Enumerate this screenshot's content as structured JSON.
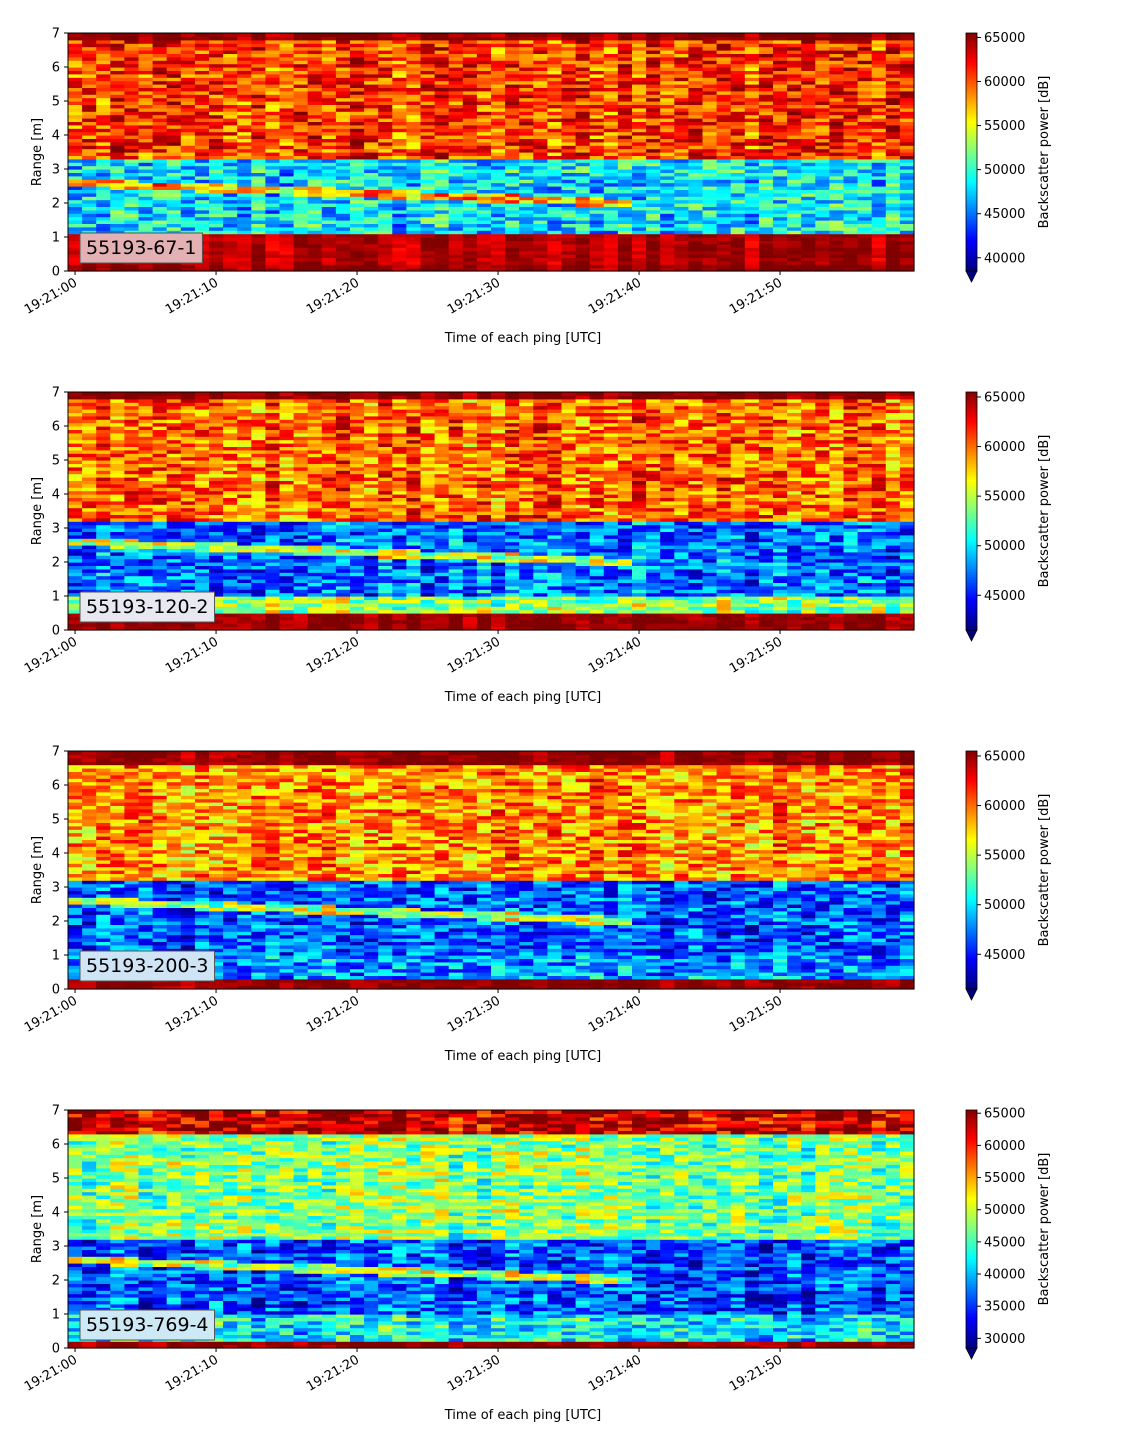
{
  "chart_data": [
    {
      "type": "heatmap",
      "label": "55193-67-1",
      "label_box_color": "#e3b1b3",
      "xlabel": "Time of each ping [UTC]",
      "ylabel": "Range [m]",
      "x_ticks": [
        "19:21:00",
        "19:21:10",
        "19:21:20",
        "19:21:30",
        "19:21:40",
        "19:21:50"
      ],
      "x_range": [
        "19:20:59.5",
        "19:21:59.5"
      ],
      "y_ticks": [
        0,
        1,
        2,
        3,
        4,
        5,
        6,
        7
      ],
      "ylim": [
        0,
        7
      ],
      "colorbar": {
        "label": "Backscatter power [dB]",
        "ticks": [
          40000,
          45000,
          50000,
          55000,
          60000,
          65000
        ],
        "vmin": 38500,
        "vmax": 65500,
        "colormap": "jet",
        "extend": "min"
      },
      "regions": [
        {
          "range": [
            0.0,
            0.25
          ],
          "level": 65000,
          "note": "strong near-field band"
        },
        {
          "range": [
            0.25,
            1.1
          ],
          "level": 64000
        },
        {
          "range": [
            1.1,
            3.3
          ],
          "level": 48000,
          "note": "low-backscatter layer with sloping echo line"
        },
        {
          "range": [
            3.3,
            6.8
          ],
          "level": 60500
        },
        {
          "range": [
            6.8,
            7.0
          ],
          "level": 65000,
          "note": "strong far-field band"
        }
      ]
    },
    {
      "type": "heatmap",
      "label": "55193-120-2",
      "label_box_color": "#e8e8f0",
      "xlabel": "Time of each ping [UTC]",
      "ylabel": "Range [m]",
      "x_ticks": [
        "19:21:00",
        "19:21:10",
        "19:21:20",
        "19:21:30",
        "19:21:40",
        "19:21:50"
      ],
      "x_range": [
        "19:20:59.5",
        "19:21:59.5"
      ],
      "y_ticks": [
        0,
        1,
        2,
        3,
        4,
        5,
        6,
        7
      ],
      "ylim": [
        0,
        7
      ],
      "colorbar": {
        "label": "Backscatter power [dB]",
        "ticks": [
          45000,
          50000,
          55000,
          60000,
          65000
        ],
        "vmin": 41500,
        "vmax": 65500,
        "colormap": "jet",
        "extend": "min"
      },
      "regions": [
        {
          "range": [
            0.0,
            0.5
          ],
          "level": 65000
        },
        {
          "range": [
            0.5,
            1.0
          ],
          "level": 54000
        },
        {
          "range": [
            1.0,
            3.2
          ],
          "level": 47000
        },
        {
          "range": [
            3.2,
            6.8
          ],
          "level": 60000
        },
        {
          "range": [
            6.8,
            7.0
          ],
          "level": 65000
        }
      ]
    },
    {
      "type": "heatmap",
      "label": "55193-200-3",
      "label_box_color": "#cfe5f5",
      "xlabel": "Time of each ping [UTC]",
      "ylabel": "Range [m]",
      "x_ticks": [
        "19:21:00",
        "19:21:10",
        "19:21:20",
        "19:21:30",
        "19:21:40",
        "19:21:50"
      ],
      "x_range": [
        "19:20:59.5",
        "19:21:59.5"
      ],
      "y_ticks": [
        0,
        1,
        2,
        3,
        4,
        5,
        6,
        7
      ],
      "ylim": [
        0,
        7
      ],
      "colorbar": {
        "label": "Backscatter power [dB]",
        "ticks": [
          45000,
          50000,
          55000,
          60000,
          65000
        ],
        "vmin": 41500,
        "vmax": 65500,
        "colormap": "jet",
        "extend": "min"
      },
      "regions": [
        {
          "range": [
            0.0,
            0.35
          ],
          "level": 65000
        },
        {
          "range": [
            0.35,
            1.0
          ],
          "level": 48000
        },
        {
          "range": [
            1.0,
            3.2
          ],
          "level": 46500
        },
        {
          "range": [
            3.2,
            6.6
          ],
          "level": 59000
        },
        {
          "range": [
            6.6,
            7.0
          ],
          "level": 65000
        }
      ]
    },
    {
      "type": "heatmap",
      "label": "55193-769-4",
      "label_box_color": "#cde9f5",
      "xlabel": "Time of each ping [UTC]",
      "ylabel": "Range [m]",
      "x_ticks": [
        "19:21:00",
        "19:21:10",
        "19:21:20",
        "19:21:30",
        "19:21:40",
        "19:21:50"
      ],
      "x_range": [
        "19:20:59.5",
        "19:21:59.5"
      ],
      "y_ticks": [
        0,
        1,
        2,
        3,
        4,
        5,
        6,
        7
      ],
      "ylim": [
        0,
        7
      ],
      "colorbar": {
        "label": "Backscatter power [dB]",
        "ticks": [
          30000,
          35000,
          40000,
          45000,
          50000,
          55000,
          60000,
          65000
        ],
        "vmin": 28500,
        "vmax": 65500,
        "colormap": "jet",
        "extend": "min"
      },
      "regions": [
        {
          "range": [
            0.0,
            0.2
          ],
          "level": 65000
        },
        {
          "range": [
            0.2,
            1.0
          ],
          "level": 42000
        },
        {
          "range": [
            1.0,
            3.2
          ],
          "level": 36000
        },
        {
          "range": [
            3.2,
            6.3
          ],
          "level": 47000
        },
        {
          "range": [
            6.3,
            7.0
          ],
          "level": 63000
        }
      ]
    }
  ]
}
